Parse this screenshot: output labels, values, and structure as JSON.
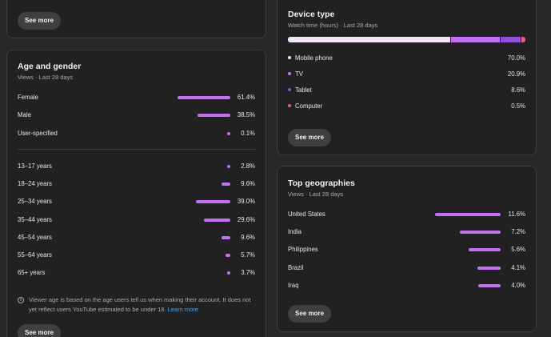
{
  "top_left_card": {
    "see_more": "See more"
  },
  "age_gender": {
    "title": "Age and gender",
    "subtitle": "Views · Last 28 days",
    "gender": [
      {
        "label": "Female",
        "pct": "61.4%",
        "value": 61.4
      },
      {
        "label": "Male",
        "pct": "38.5%",
        "value": 38.5
      },
      {
        "label": "User-specified",
        "pct": "0.1%",
        "value": 0.1
      }
    ],
    "age": [
      {
        "label": "13–17 years",
        "pct": "2.8%",
        "value": 2.8
      },
      {
        "label": "18–24 years",
        "pct": "9.6%",
        "value": 9.6
      },
      {
        "label": "25–34 years",
        "pct": "39.0%",
        "value": 39.0
      },
      {
        "label": "35–44 years",
        "pct": "29.6%",
        "value": 29.6
      },
      {
        "label": "45–54 years",
        "pct": "9.6%",
        "value": 9.6
      },
      {
        "label": "55–64 years",
        "pct": "5.7%",
        "value": 5.7
      },
      {
        "label": "65+ years",
        "pct": "3.7%",
        "value": 3.7
      }
    ],
    "note": "Viewer age is based on the age users tell us when making their account. It does not yet reflect users YouTube estimated to be under 18.",
    "learn_more": "Learn more",
    "see_more": "See more"
  },
  "device_type": {
    "title": "Device type",
    "subtitle": "Watch time (hours) · Last 28 days",
    "items": [
      {
        "label": "Mobile phone",
        "pct": "70.0%",
        "value": 70.0,
        "color": "#f1e6f7"
      },
      {
        "label": "TV",
        "pct": "20.9%",
        "value": 20.9,
        "color": "#c56ff5"
      },
      {
        "label": "Tablet",
        "pct": "8.6%",
        "value": 8.6,
        "color": "#8f4fd8"
      },
      {
        "label": "Computer",
        "pct": "0.5%",
        "value": 0.5,
        "color": "#e8607c"
      }
    ],
    "see_more": "See more"
  },
  "top_geographies": {
    "title": "Top geographies",
    "subtitle": "Views · Last 28 days",
    "items": [
      {
        "label": "United States",
        "pct": "11.6%",
        "value": 11.6
      },
      {
        "label": "India",
        "pct": "7.2%",
        "value": 7.2
      },
      {
        "label": "Philippines",
        "pct": "5.6%",
        "value": 5.6
      },
      {
        "label": "Brazil",
        "pct": "4.1%",
        "value": 4.1
      },
      {
        "label": "Iraq",
        "pct": "4.0%",
        "value": 4.0
      }
    ],
    "see_more": "See more"
  },
  "colors": {
    "bar": "#c56ff5",
    "link": "#3ea6ff"
  }
}
